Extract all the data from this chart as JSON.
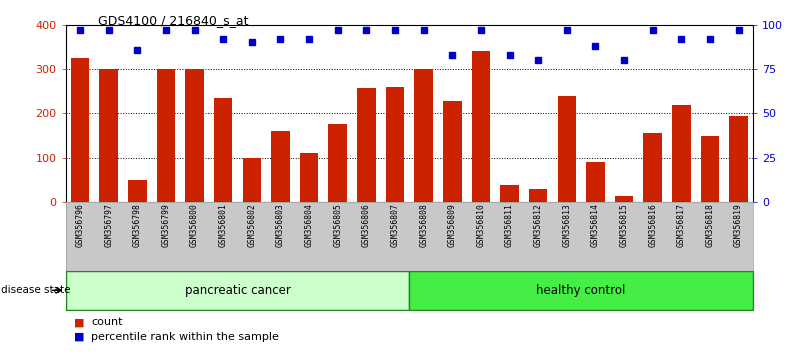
{
  "title": "GDS4100 / 216840_s_at",
  "samples": [
    "GSM356796",
    "GSM356797",
    "GSM356798",
    "GSM356799",
    "GSM356800",
    "GSM356801",
    "GSM356802",
    "GSM356803",
    "GSM356804",
    "GSM356805",
    "GSM356806",
    "GSM356807",
    "GSM356808",
    "GSM356809",
    "GSM356810",
    "GSM356811",
    "GSM356812",
    "GSM356813",
    "GSM356814",
    "GSM356815",
    "GSM356816",
    "GSM356817",
    "GSM356818",
    "GSM356819"
  ],
  "counts": [
    325,
    300,
    50,
    300,
    300,
    235,
    100,
    160,
    110,
    175,
    258,
    260,
    300,
    228,
    340,
    38,
    28,
    238,
    90,
    12,
    155,
    218,
    148,
    193
  ],
  "percentiles": [
    97,
    97,
    86,
    97,
    97,
    92,
    90,
    92,
    92,
    97,
    97,
    97,
    97,
    83,
    97,
    83,
    80,
    97,
    88,
    80,
    97,
    92,
    92,
    97
  ],
  "bar_color": "#CC2200",
  "dot_color": "#0000CC",
  "n_pancreatic": 12,
  "n_healthy": 12,
  "pancreatic_color": "#CCFFCC",
  "healthy_color": "#44EE44",
  "ylim_left": [
    0,
    400
  ],
  "ylim_right": [
    0,
    100
  ],
  "yticks_left": [
    0,
    100,
    200,
    300,
    400
  ],
  "yticks_right": [
    0,
    25,
    50,
    75,
    100
  ],
  "bg_color": "#C8C8C8",
  "legend_count_label": "count",
  "legend_pct_label": "percentile rank within the sample",
  "disease_state_label": "disease state",
  "pancreatic_label": "pancreatic cancer",
  "healthy_label": "healthy control"
}
